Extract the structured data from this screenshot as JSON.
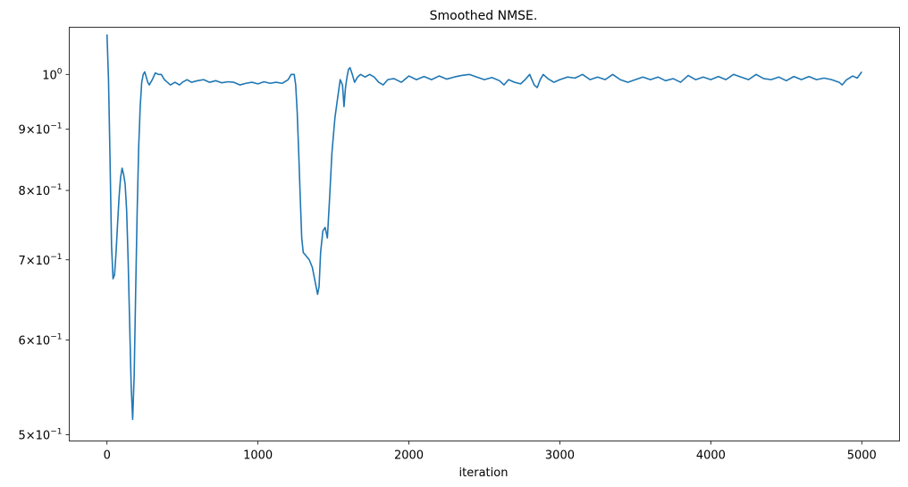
{
  "chart_data": {
    "type": "line",
    "title": "Smoothed NMSE.",
    "xlabel": "iteration",
    "ylabel": "",
    "yscale": "log",
    "xlim": [
      -250,
      5250
    ],
    "ylim": [
      0.494,
      1.095
    ],
    "grid": false,
    "x_ticks": [
      {
        "value": 0,
        "label": "0"
      },
      {
        "value": 1000,
        "label": "1000"
      },
      {
        "value": 2000,
        "label": "2000"
      },
      {
        "value": 3000,
        "label": "3000"
      },
      {
        "value": 4000,
        "label": "4000"
      },
      {
        "value": 5000,
        "label": "5000"
      }
    ],
    "y_ticks": [
      {
        "value": 0.5,
        "base": "5",
        "sep": "×",
        "mant": "10",
        "exp": "−1"
      },
      {
        "value": 0.6,
        "base": "6",
        "sep": "×",
        "mant": "10",
        "exp": "−1"
      },
      {
        "value": 0.7,
        "base": "7",
        "sep": "×",
        "mant": "10",
        "exp": "−1"
      },
      {
        "value": 0.8,
        "base": "8",
        "sep": "×",
        "mant": "10",
        "exp": "−1"
      },
      {
        "value": 0.9,
        "base": "9",
        "sep": "×",
        "mant": "10",
        "exp": "−1"
      },
      {
        "value": 1.0,
        "base": "",
        "sep": "",
        "mant": "10",
        "exp": "0"
      }
    ],
    "series": [
      {
        "color": "#1f77b4",
        "points": [
          [
            0,
            1.08
          ],
          [
            10,
            0.99
          ],
          [
            20,
            0.85
          ],
          [
            30,
            0.72
          ],
          [
            40,
            0.675
          ],
          [
            50,
            0.68
          ],
          [
            60,
            0.71
          ],
          [
            70,
            0.75
          ],
          [
            80,
            0.79
          ],
          [
            90,
            0.82
          ],
          [
            100,
            0.835
          ],
          [
            110,
            0.825
          ],
          [
            120,
            0.81
          ],
          [
            130,
            0.77
          ],
          [
            140,
            0.7
          ],
          [
            150,
            0.62
          ],
          [
            160,
            0.55
          ],
          [
            170,
            0.515
          ],
          [
            180,
            0.56
          ],
          [
            190,
            0.66
          ],
          [
            200,
            0.77
          ],
          [
            210,
            0.87
          ],
          [
            220,
            0.94
          ],
          [
            230,
            0.985
          ],
          [
            240,
            1.0
          ],
          [
            250,
            1.005
          ],
          [
            260,
            0.995
          ],
          [
            270,
            0.985
          ],
          [
            280,
            0.98
          ],
          [
            300,
            0.99
          ],
          [
            320,
            1.003
          ],
          [
            340,
            1.0
          ],
          [
            360,
            1.0
          ],
          [
            380,
            0.99
          ],
          [
            400,
            0.985
          ],
          [
            420,
            0.98
          ],
          [
            450,
            0.985
          ],
          [
            480,
            0.98
          ],
          [
            500,
            0.985
          ],
          [
            530,
            0.99
          ],
          [
            560,
            0.985
          ],
          [
            600,
            0.988
          ],
          [
            640,
            0.99
          ],
          [
            680,
            0.985
          ],
          [
            720,
            0.988
          ],
          [
            760,
            0.984
          ],
          [
            800,
            0.986
          ],
          [
            840,
            0.985
          ],
          [
            880,
            0.98
          ],
          [
            920,
            0.983
          ],
          [
            960,
            0.985
          ],
          [
            1000,
            0.982
          ],
          [
            1040,
            0.986
          ],
          [
            1080,
            0.983
          ],
          [
            1120,
            0.985
          ],
          [
            1160,
            0.983
          ],
          [
            1200,
            0.99
          ],
          [
            1220,
            1.0
          ],
          [
            1240,
            1.0
          ],
          [
            1250,
            0.98
          ],
          [
            1260,
            0.93
          ],
          [
            1270,
            0.86
          ],
          [
            1280,
            0.79
          ],
          [
            1290,
            0.73
          ],
          [
            1300,
            0.71
          ],
          [
            1320,
            0.705
          ],
          [
            1340,
            0.7
          ],
          [
            1360,
            0.69
          ],
          [
            1380,
            0.67
          ],
          [
            1395,
            0.655
          ],
          [
            1405,
            0.665
          ],
          [
            1415,
            0.71
          ],
          [
            1430,
            0.74
          ],
          [
            1445,
            0.745
          ],
          [
            1460,
            0.73
          ],
          [
            1475,
            0.79
          ],
          [
            1490,
            0.86
          ],
          [
            1510,
            0.92
          ],
          [
            1530,
            0.96
          ],
          [
            1545,
            0.99
          ],
          [
            1560,
            0.98
          ],
          [
            1570,
            0.94
          ],
          [
            1580,
            0.975
          ],
          [
            1590,
            0.995
          ],
          [
            1600,
            1.01
          ],
          [
            1610,
            1.013
          ],
          [
            1625,
            1.0
          ],
          [
            1640,
            0.985
          ],
          [
            1660,
            0.995
          ],
          [
            1680,
            1.0
          ],
          [
            1710,
            0.995
          ],
          [
            1740,
            1.0
          ],
          [
            1770,
            0.995
          ],
          [
            1800,
            0.985
          ],
          [
            1830,
            0.98
          ],
          [
            1860,
            0.99
          ],
          [
            1900,
            0.992
          ],
          [
            1950,
            0.985
          ],
          [
            2000,
            0.997
          ],
          [
            2050,
            0.99
          ],
          [
            2100,
            0.996
          ],
          [
            2150,
            0.99
          ],
          [
            2200,
            0.997
          ],
          [
            2250,
            0.991
          ],
          [
            2300,
            0.995
          ],
          [
            2350,
            0.998
          ],
          [
            2400,
            1.0
          ],
          [
            2450,
            0.995
          ],
          [
            2500,
            0.99
          ],
          [
            2550,
            0.994
          ],
          [
            2600,
            0.988
          ],
          [
            2630,
            0.98
          ],
          [
            2660,
            0.99
          ],
          [
            2700,
            0.985
          ],
          [
            2740,
            0.982
          ],
          [
            2770,
            0.99
          ],
          [
            2800,
            1.0
          ],
          [
            2830,
            0.98
          ],
          [
            2850,
            0.975
          ],
          [
            2870,
            0.99
          ],
          [
            2890,
            1.0
          ],
          [
            2920,
            0.992
          ],
          [
            2960,
            0.985
          ],
          [
            3000,
            0.99
          ],
          [
            3050,
            0.995
          ],
          [
            3100,
            0.993
          ],
          [
            3150,
            1.0
          ],
          [
            3200,
            0.99
          ],
          [
            3250,
            0.995
          ],
          [
            3300,
            0.99
          ],
          [
            3350,
            1.0
          ],
          [
            3400,
            0.99
          ],
          [
            3450,
            0.985
          ],
          [
            3500,
            0.99
          ],
          [
            3550,
            0.995
          ],
          [
            3600,
            0.99
          ],
          [
            3650,
            0.995
          ],
          [
            3700,
            0.988
          ],
          [
            3750,
            0.992
          ],
          [
            3800,
            0.985
          ],
          [
            3850,
            0.998
          ],
          [
            3900,
            0.99
          ],
          [
            3950,
            0.995
          ],
          [
            4000,
            0.99
          ],
          [
            4050,
            0.996
          ],
          [
            4100,
            0.99
          ],
          [
            4150,
            1.0
          ],
          [
            4200,
            0.995
          ],
          [
            4250,
            0.99
          ],
          [
            4300,
            1.0
          ],
          [
            4350,
            0.992
          ],
          [
            4400,
            0.99
          ],
          [
            4450,
            0.995
          ],
          [
            4500,
            0.988
          ],
          [
            4550,
            0.996
          ],
          [
            4600,
            0.99
          ],
          [
            4650,
            0.996
          ],
          [
            4700,
            0.99
          ],
          [
            4750,
            0.993
          ],
          [
            4800,
            0.99
          ],
          [
            4850,
            0.985
          ],
          [
            4870,
            0.98
          ],
          [
            4900,
            0.99
          ],
          [
            4940,
            0.997
          ],
          [
            4970,
            0.993
          ],
          [
            5000,
            1.005
          ]
        ]
      }
    ]
  }
}
